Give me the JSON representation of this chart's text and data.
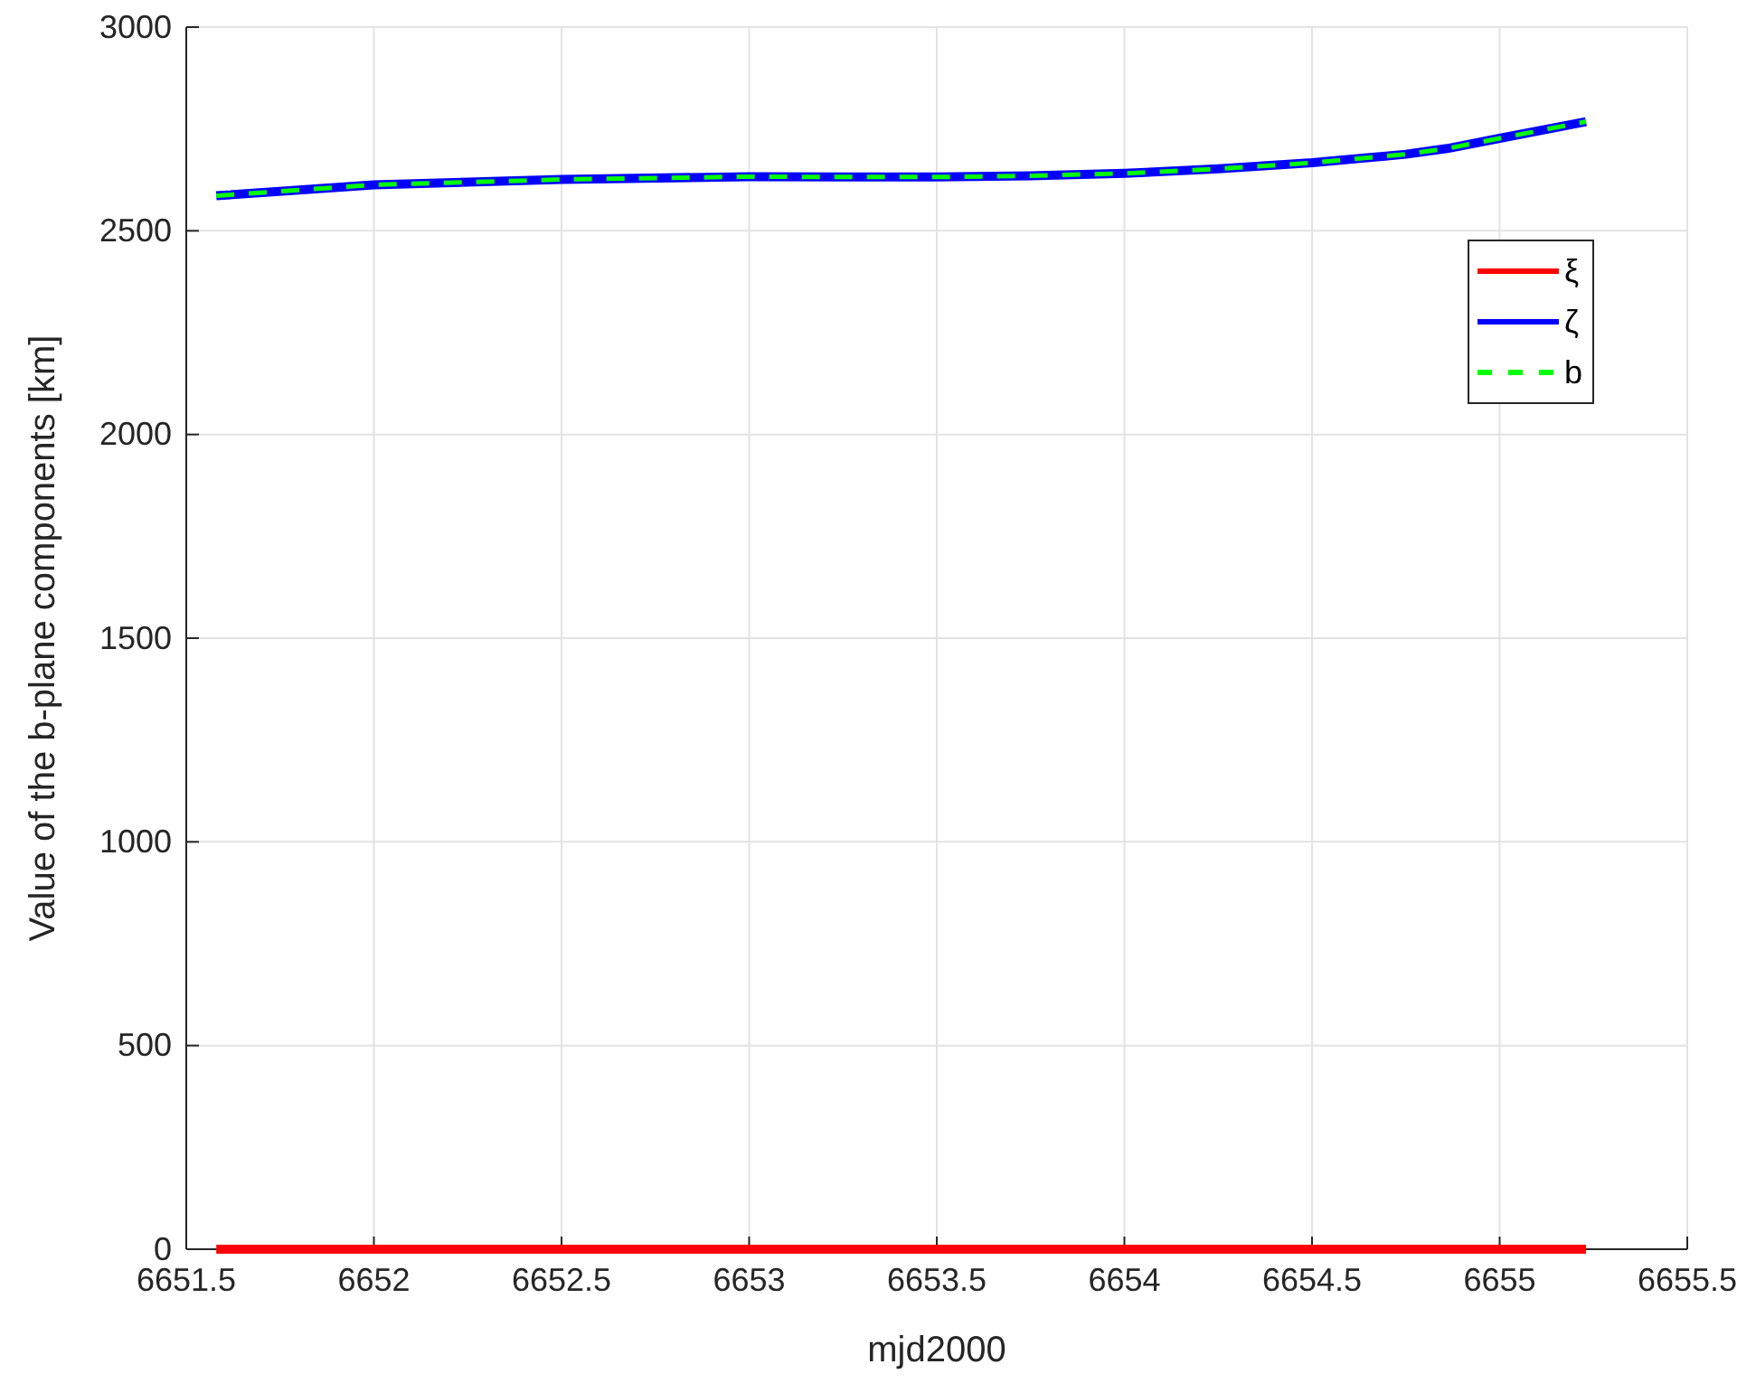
{
  "chart_data": {
    "type": "line",
    "xlabel": "mjd2000",
    "ylabel": "Value of the b-plane components [km]",
    "x": [
      6651.58,
      6652,
      6652.5,
      6653,
      6653.25,
      6653.5,
      6653.75,
      6654,
      6654.25,
      6654.5,
      6654.75,
      6654.86,
      6655,
      6655.23
    ],
    "series": [
      {
        "name": "ξ",
        "color": "#ff0000",
        "line_style": "solid",
        "values": [
          0,
          0,
          0,
          0,
          0,
          0,
          0,
          0,
          0,
          0,
          0,
          0,
          0,
          0
        ]
      },
      {
        "name": "ζ",
        "color": "#0000ff",
        "line_style": "solid",
        "values": [
          2586,
          2613,
          2626,
          2633,
          2632,
          2632,
          2635,
          2641,
          2652,
          2667,
          2688,
          2702,
          2727,
          2768
        ]
      },
      {
        "name": "b",
        "color": "#00ff00",
        "line_style": "dashed",
        "values": [
          2586,
          2613,
          2626,
          2633,
          2632,
          2632,
          2635,
          2641,
          2652,
          2667,
          2688,
          2702,
          2727,
          2768
        ]
      }
    ],
    "xlim": [
      6651.5,
      6655.5
    ],
    "xticks": [
      6651.5,
      6652,
      6652.5,
      6653,
      6653.5,
      6654,
      6654.5,
      6655,
      6655.5
    ],
    "ylim": [
      0,
      3000
    ],
    "yticks": [
      0,
      500,
      1000,
      1500,
      2000,
      2500,
      3000
    ],
    "grid": true,
    "legend": "top right"
  }
}
